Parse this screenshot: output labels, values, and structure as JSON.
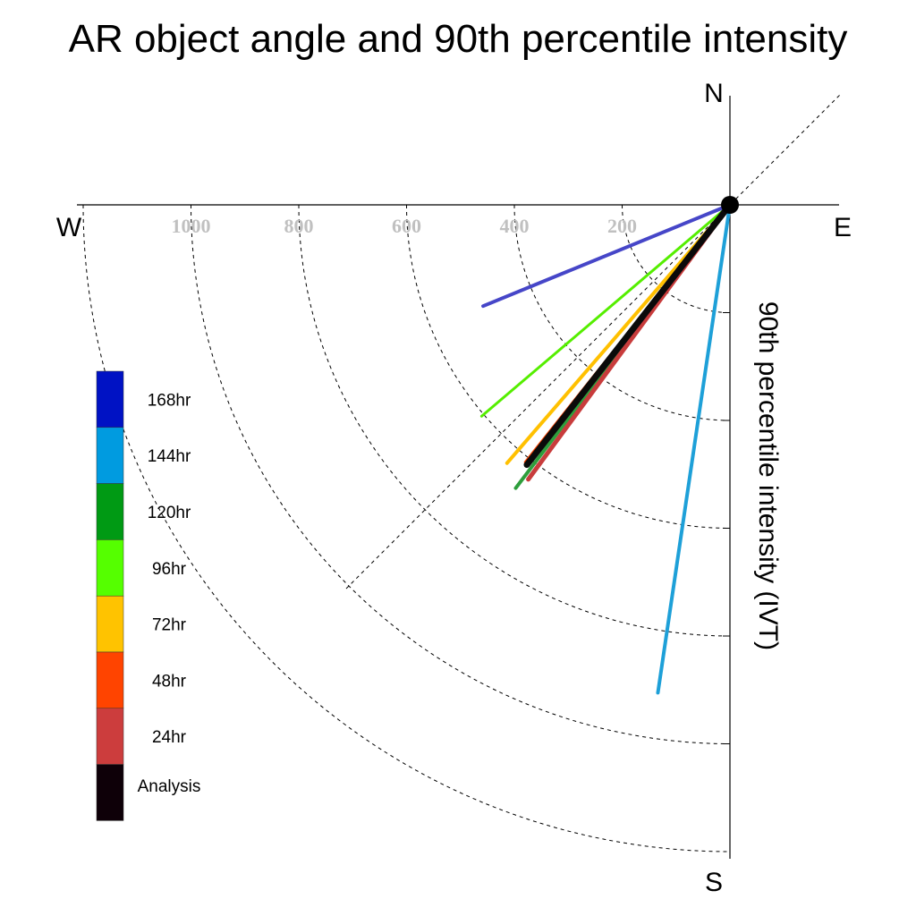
{
  "chart_data": {
    "type": "polar-vector",
    "title": "AR object angle and 90th percentile intensity",
    "ylabel": "90th percentile intensity (IVT)",
    "directions": {
      "north": "N",
      "south": "S",
      "east": "E",
      "west": "W"
    },
    "rings": [
      200,
      400,
      600,
      800,
      1000
    ],
    "ring_labels": [
      "200",
      "400",
      "600",
      "800",
      "1000"
    ],
    "rlim": [
      0,
      1200
    ],
    "grid": true,
    "legend_position": "left",
    "series": [
      {
        "name": "144hr",
        "color": "#1ea0d8",
        "angle_deg": 188.4,
        "intensity": 915,
        "width": 4
      },
      {
        "name": "168hr",
        "color": "#4646c8",
        "angle_deg": 247.7,
        "intensity": 495,
        "width": 4
      },
      {
        "name": "96hr",
        "color": "#55ee00",
        "angle_deg": 229.6,
        "intensity": 605,
        "width": 3
      },
      {
        "name": "120hr",
        "color": "#2e9e3c",
        "angle_deg": 217.1,
        "intensity": 659,
        "width": 4
      },
      {
        "name": "72hr",
        "color": "#ffc000",
        "angle_deg": 220.8,
        "intensity": 633,
        "width": 4
      },
      {
        "name": "48hr",
        "color": "#ff4500",
        "angle_deg": 218.5,
        "intensity": 610,
        "width": 3
      },
      {
        "name": "24hr",
        "color": "#c83c3c",
        "angle_deg": 216.3,
        "intensity": 632,
        "width": 5
      },
      {
        "name": "Analysis",
        "color": "#0a0a0a",
        "angle_deg": 218.0,
        "intensity": 612,
        "width": 7
      }
    ],
    "legend": [
      {
        "label": "168hr",
        "color": "#0012c4"
      },
      {
        "label": "144hr",
        "color": "#009be0"
      },
      {
        "label": "120hr",
        "color": "#009a14"
      },
      {
        "label": "96hr",
        "color": "#55ff00"
      },
      {
        "label": "72hr",
        "color": "#ffc300"
      },
      {
        "label": "48hr",
        "color": "#ff4400"
      },
      {
        "label": "24hr",
        "color": "#cc3d3d"
      },
      {
        "label": "Analysis",
        "color": "#0e0008"
      }
    ]
  }
}
